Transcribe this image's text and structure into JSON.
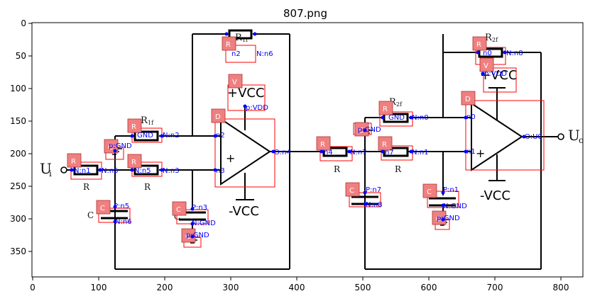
{
  "figure": {
    "title": "807.png",
    "x_ticks": [
      "0",
      "100",
      "200",
      "300",
      "400",
      "500",
      "600",
      "700",
      "800"
    ],
    "y_ticks": [
      "0",
      "50",
      "100",
      "150",
      "200",
      "250",
      "300",
      "350"
    ]
  },
  "circuit": {
    "input_label": "U",
    "input_sub": "i",
    "output_label": "U",
    "output_sub": "o",
    "vcc_plus": "+VCC",
    "vcc_minus": "-VCC",
    "printed": {
      "r1f": "R",
      "r1f_sub": "1f",
      "r2f": "R",
      "r2f_sub": "2f",
      "r_a": "R",
      "r_b": "R",
      "r_c": "R",
      "r_d": "R",
      "c_a": "C",
      "c_b": "C"
    },
    "nodes": {
      "n1": "N:n1",
      "nGND_1": "GND",
      "n2": "N:n2",
      "n5": "N:n5",
      "n3": "N:n3",
      "n2_top": "n2",
      "n6": "N:n6",
      "vdd_p": "p:VDD",
      "in_n2": "n2",
      "in_n3": "n3",
      "out_n4": "O:n4",
      "cap_top_p": "P:n5",
      "cap_top_n": "N:n6",
      "c2_p": "P:n3",
      "c2_n": "N:GND",
      "gnd_a": "p:GND",
      "gnd_b": "p:GND",
      "r_n4": "n4",
      "r_n7": "N:n7",
      "r_n7b": "n7",
      "r_n1": "N:n1",
      "r2f_gnd": "GND",
      "r2f_n0": "N:n0",
      "c3_p": "P:n7",
      "c3_n": "N:n8",
      "rf2_n0": "n0",
      "rf2_n8": "N:n8",
      "v_vdd": "p:VDD",
      "op2_n0": "n0",
      "op2_n1": "n1",
      "op2_out": "O:U0",
      "c4_p": "P:n1",
      "c4_n": "N:GND",
      "gnd_c": "p:GND",
      "gnd_d": "p:GND",
      "gnd_e": "p:GND"
    },
    "tags": {
      "r": "R",
      "c": "C",
      "d": "D",
      "v": "V"
    }
  }
}
